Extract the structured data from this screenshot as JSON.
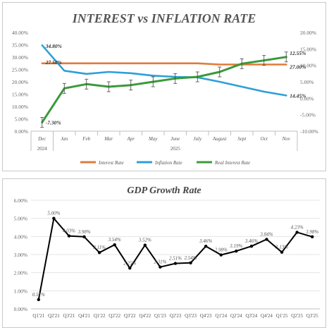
{
  "chart_data": [
    {
      "type": "line",
      "title": "INTEREST vs INFLATION RATE",
      "categories": [
        "Dec",
        "Jan",
        "Feb",
        "Mar",
        "Apr",
        "May",
        "June",
        "July",
        "August",
        "Sept",
        "Oct",
        "Nov"
      ],
      "x_group_labels": [
        "2024",
        "2025"
      ],
      "y_left": {
        "ticks": [
          "0.00%",
          "5.00%",
          "10.00%",
          "15.00%",
          "20.00%",
          "25.00%",
          "30.00%",
          "35.00%",
          "40.00%"
        ],
        "range": [
          0,
          40
        ]
      },
      "y_right": {
        "ticks": [
          "-10.00%",
          "-5.00%",
          "0.00%",
          "5.00%",
          "10.00%",
          "15.00%",
          "20.00%"
        ],
        "range": [
          -10,
          20
        ]
      },
      "series": [
        {
          "name": "Interest Rate",
          "axis": "left",
          "color": "#e07b39",
          "values": [
            27.5,
            27.5,
            27.5,
            27.5,
            27.5,
            27.5,
            27.5,
            27.5,
            27.0,
            27.0,
            27.0,
            27.0
          ]
        },
        {
          "name": "Inflation Rate",
          "axis": "left",
          "color": "#2e9fd8",
          "values": [
            34.8,
            24.5,
            23.2,
            24.0,
            23.5,
            22.5,
            22.0,
            21.8,
            20.0,
            18.0,
            16.0,
            14.45
          ]
        },
        {
          "name": "Real Interest Rate",
          "axis": "right",
          "color": "#3a9a3a",
          "values": [
            -7.3,
            3.0,
            4.3,
            3.5,
            4.0,
            5.0,
            6.0,
            6.5,
            8.0,
            10.5,
            11.5,
            12.55
          ],
          "error_bar": 1.5
        }
      ],
      "data_labels": [
        {
          "series": 1,
          "index": 0,
          "text": "34.80%"
        },
        {
          "series": 0,
          "index": 0,
          "text": "27.50%"
        },
        {
          "series": 2,
          "index": 0,
          "text": "-7.30%"
        },
        {
          "series": 2,
          "index": 11,
          "text": "12.55%"
        },
        {
          "series": 0,
          "index": 11,
          "text": "27.00%"
        },
        {
          "series": 1,
          "index": 11,
          "text": "14.45%"
        }
      ],
      "legend_position": "bottom",
      "grid": false
    },
    {
      "type": "line",
      "title": "GDP Growth Rate",
      "categories": [
        "Q1'21",
        "Q2'21",
        "Q3'21",
        "Q4'21",
        "Q1'22",
        "Q2'22",
        "Q3'22",
        "Q4'22",
        "Q1'23",
        "Q2'23",
        "Q3'23",
        "Q4'23",
        "Q1'24",
        "Q2'24",
        "Q3'24",
        "Q4'24",
        "Q1'25",
        "Q2'25",
        "Q3'25"
      ],
      "values": [
        0.51,
        5.0,
        4.03,
        3.98,
        3.11,
        3.54,
        2.25,
        3.52,
        2.31,
        2.51,
        2.54,
        3.46,
        2.98,
        3.19,
        3.46,
        3.84,
        3.13,
        4.23,
        3.98
      ],
      "value_labels": [
        "0.51%",
        "5.00%",
        "4.03%",
        "3.98%",
        "3.11%",
        "3.54%",
        "2.25%",
        "3.52%",
        "2.31%",
        "2.51%",
        "2.54%",
        "3.46%",
        "2.98%",
        "3.19%",
        "3.46%",
        "3.84%",
        "3.13%",
        "4.23%",
        "3.98%"
      ],
      "y_ticks": [
        "0.00%",
        "1.00%",
        "2.00%",
        "3.00%",
        "4.00%",
        "5.00%",
        "6.00%"
      ],
      "ylim": [
        0,
        6
      ],
      "color": "#000000",
      "grid": true
    }
  ]
}
